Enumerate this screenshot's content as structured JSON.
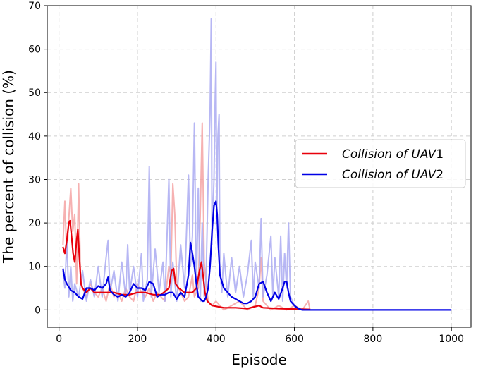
{
  "chart_data": {
    "type": "line",
    "xlabel": "Episode",
    "ylabel": "The percent of collision (%)",
    "xlim": [
      -30,
      1050
    ],
    "ylim": [
      -4,
      70
    ],
    "x_ticks": [
      0,
      200,
      400,
      600,
      800,
      1000
    ],
    "y_ticks": [
      0,
      10,
      20,
      30,
      40,
      50,
      60,
      70
    ],
    "grid": true,
    "legend_position": "right",
    "series": [
      {
        "name": "Collision of UAV1",
        "color": "#e8000b",
        "raw_color": "#f4a3a3",
        "raw": [
          [
            10,
            15
          ],
          [
            15,
            25
          ],
          [
            20,
            12
          ],
          [
            25,
            21
          ],
          [
            30,
            28
          ],
          [
            35,
            18
          ],
          [
            40,
            22
          ],
          [
            45,
            6
          ],
          [
            50,
            29
          ],
          [
            55,
            7
          ],
          [
            60,
            5
          ],
          [
            70,
            3
          ],
          [
            80,
            6
          ],
          [
            90,
            4
          ],
          [
            100,
            3
          ],
          [
            110,
            5
          ],
          [
            120,
            2
          ],
          [
            130,
            6
          ],
          [
            140,
            3
          ],
          [
            150,
            4
          ],
          [
            160,
            2
          ],
          [
            170,
            5
          ],
          [
            180,
            3
          ],
          [
            190,
            2
          ],
          [
            200,
            6
          ],
          [
            210,
            4
          ],
          [
            220,
            3
          ],
          [
            230,
            5
          ],
          [
            240,
            2
          ],
          [
            250,
            4
          ],
          [
            260,
            3
          ],
          [
            270,
            2
          ],
          [
            280,
            10
          ],
          [
            285,
            8
          ],
          [
            290,
            29
          ],
          [
            295,
            22
          ],
          [
            300,
            6
          ],
          [
            310,
            4
          ],
          [
            320,
            2
          ],
          [
            330,
            3
          ],
          [
            340,
            8
          ],
          [
            345,
            3
          ],
          [
            355,
            5
          ],
          [
            360,
            22
          ],
          [
            365,
            43
          ],
          [
            370,
            11
          ],
          [
            375,
            6
          ],
          [
            380,
            2
          ],
          [
            390,
            1
          ],
          [
            400,
            2
          ],
          [
            420,
            0
          ],
          [
            440,
            1
          ],
          [
            460,
            2
          ],
          [
            480,
            0
          ],
          [
            500,
            1
          ],
          [
            510,
            5
          ],
          [
            515,
            12
          ],
          [
            520,
            2
          ],
          [
            540,
            0
          ],
          [
            560,
            1
          ],
          [
            580,
            0
          ],
          [
            600,
            1
          ],
          [
            620,
            0
          ],
          [
            635,
            2
          ],
          [
            640,
            0
          ]
        ],
        "smooth": [
          [
            10,
            14.5
          ],
          [
            15,
            13
          ],
          [
            20,
            16
          ],
          [
            25,
            20
          ],
          [
            28,
            20.5
          ],
          [
            32,
            17
          ],
          [
            36,
            13
          ],
          [
            40,
            11
          ],
          [
            45,
            16
          ],
          [
            48,
            18.5
          ],
          [
            52,
            12
          ],
          [
            56,
            6
          ],
          [
            60,
            5
          ],
          [
            70,
            4
          ],
          [
            80,
            5
          ],
          [
            90,
            4
          ],
          [
            100,
            4
          ],
          [
            120,
            4
          ],
          [
            140,
            4
          ],
          [
            160,
            3.5
          ],
          [
            180,
            3.5
          ],
          [
            200,
            4
          ],
          [
            220,
            4
          ],
          [
            240,
            3.5
          ],
          [
            260,
            3.5
          ],
          [
            280,
            5
          ],
          [
            287,
            9
          ],
          [
            292,
            9.5
          ],
          [
            297,
            6
          ],
          [
            305,
            5
          ],
          [
            320,
            4
          ],
          [
            340,
            4
          ],
          [
            350,
            5
          ],
          [
            358,
            9
          ],
          [
            363,
            11
          ],
          [
            367,
            8
          ],
          [
            372,
            4
          ],
          [
            378,
            2
          ],
          [
            390,
            1
          ],
          [
            420,
            0.5
          ],
          [
            450,
            0.5
          ],
          [
            480,
            0.3
          ],
          [
            510,
            1
          ],
          [
            520,
            0.5
          ],
          [
            560,
            0.3
          ],
          [
            600,
            0.2
          ],
          [
            640,
            0.1
          ]
        ]
      },
      {
        "name": "Collision of UAV2",
        "color": "#0000e6",
        "raw_color": "#aaaaf2",
        "raw": [
          [
            10,
            9
          ],
          [
            15,
            5
          ],
          [
            20,
            16
          ],
          [
            25,
            3
          ],
          [
            30,
            10
          ],
          [
            35,
            2
          ],
          [
            40,
            6
          ],
          [
            50,
            3
          ],
          [
            60,
            9
          ],
          [
            70,
            2
          ],
          [
            80,
            7
          ],
          [
            90,
            3
          ],
          [
            100,
            10
          ],
          [
            110,
            3
          ],
          [
            120,
            12
          ],
          [
            125,
            16
          ],
          [
            130,
            4
          ],
          [
            140,
            9
          ],
          [
            150,
            2
          ],
          [
            160,
            11
          ],
          [
            170,
            3
          ],
          [
            175,
            15
          ],
          [
            180,
            4
          ],
          [
            190,
            10
          ],
          [
            200,
            3
          ],
          [
            210,
            13
          ],
          [
            215,
            2
          ],
          [
            225,
            7
          ],
          [
            230,
            33
          ],
          [
            235,
            3
          ],
          [
            245,
            14
          ],
          [
            255,
            4
          ],
          [
            265,
            11
          ],
          [
            270,
            2
          ],
          [
            280,
            30
          ],
          [
            285,
            3
          ],
          [
            290,
            11
          ],
          [
            300,
            2
          ],
          [
            310,
            15
          ],
          [
            320,
            5
          ],
          [
            330,
            31
          ],
          [
            335,
            10
          ],
          [
            340,
            17
          ],
          [
            345,
            43
          ],
          [
            350,
            4
          ],
          [
            355,
            28
          ],
          [
            360,
            2
          ],
          [
            365,
            20
          ],
          [
            370,
            3
          ],
          [
            375,
            8
          ],
          [
            380,
            30
          ],
          [
            385,
            45
          ],
          [
            388,
            67
          ],
          [
            390,
            15
          ],
          [
            392,
            22
          ],
          [
            395,
            30
          ],
          [
            398,
            49
          ],
          [
            400,
            57
          ],
          [
            402,
            20
          ],
          [
            405,
            40
          ],
          [
            408,
            45
          ],
          [
            410,
            10
          ],
          [
            415,
            4
          ],
          [
            420,
            13
          ],
          [
            430,
            3
          ],
          [
            440,
            12
          ],
          [
            450,
            4
          ],
          [
            460,
            10
          ],
          [
            470,
            3
          ],
          [
            480,
            8
          ],
          [
            490,
            16
          ],
          [
            495,
            3
          ],
          [
            500,
            11
          ],
          [
            510,
            5
          ],
          [
            515,
            21
          ],
          [
            520,
            3
          ],
          [
            530,
            8
          ],
          [
            540,
            17
          ],
          [
            545,
            3
          ],
          [
            550,
            12
          ],
          [
            560,
            3
          ],
          [
            565,
            17
          ],
          [
            570,
            2
          ],
          [
            575,
            13
          ],
          [
            580,
            5
          ],
          [
            585,
            20
          ],
          [
            590,
            3
          ],
          [
            600,
            1
          ],
          [
            610,
            0
          ]
        ],
        "smooth": [
          [
            10,
            9.5
          ],
          [
            15,
            7
          ],
          [
            20,
            6
          ],
          [
            30,
            4.5
          ],
          [
            40,
            4
          ],
          [
            50,
            3
          ],
          [
            60,
            2.5
          ],
          [
            70,
            5
          ],
          [
            80,
            5
          ],
          [
            90,
            4.5
          ],
          [
            100,
            5.5
          ],
          [
            110,
            5
          ],
          [
            120,
            6
          ],
          [
            125,
            7.5
          ],
          [
            130,
            4.5
          ],
          [
            140,
            3.5
          ],
          [
            150,
            3
          ],
          [
            160,
            3.5
          ],
          [
            170,
            3
          ],
          [
            180,
            4
          ],
          [
            190,
            6
          ],
          [
            200,
            5
          ],
          [
            210,
            5
          ],
          [
            220,
            4.5
          ],
          [
            230,
            6.5
          ],
          [
            240,
            6
          ],
          [
            250,
            3
          ],
          [
            260,
            3.5
          ],
          [
            270,
            3.5
          ],
          [
            280,
            4
          ],
          [
            290,
            4
          ],
          [
            300,
            2.5
          ],
          [
            310,
            4
          ],
          [
            320,
            3
          ],
          [
            330,
            8
          ],
          [
            335,
            15.5
          ],
          [
            340,
            13
          ],
          [
            345,
            10
          ],
          [
            350,
            6
          ],
          [
            355,
            3
          ],
          [
            360,
            2.5
          ],
          [
            365,
            2
          ],
          [
            370,
            2
          ],
          [
            375,
            3
          ],
          [
            380,
            5
          ],
          [
            385,
            10
          ],
          [
            390,
            18
          ],
          [
            395,
            24
          ],
          [
            400,
            25
          ],
          [
            403,
            22
          ],
          [
            406,
            15
          ],
          [
            410,
            8
          ],
          [
            420,
            5
          ],
          [
            430,
            4
          ],
          [
            440,
            3
          ],
          [
            450,
            2.5
          ],
          [
            460,
            2
          ],
          [
            470,
            1.5
          ],
          [
            480,
            1.5
          ],
          [
            490,
            2
          ],
          [
            500,
            3
          ],
          [
            510,
            6
          ],
          [
            520,
            6.5
          ],
          [
            530,
            4
          ],
          [
            540,
            2
          ],
          [
            550,
            4
          ],
          [
            560,
            2.5
          ],
          [
            570,
            5
          ],
          [
            575,
            6.5
          ],
          [
            580,
            6.5
          ],
          [
            585,
            4
          ],
          [
            590,
            2
          ],
          [
            600,
            1
          ],
          [
            610,
            0.3
          ],
          [
            620,
            0
          ],
          [
            700,
            0
          ],
          [
            800,
            0
          ],
          [
            900,
            0
          ],
          [
            1000,
            0
          ]
        ]
      }
    ]
  }
}
